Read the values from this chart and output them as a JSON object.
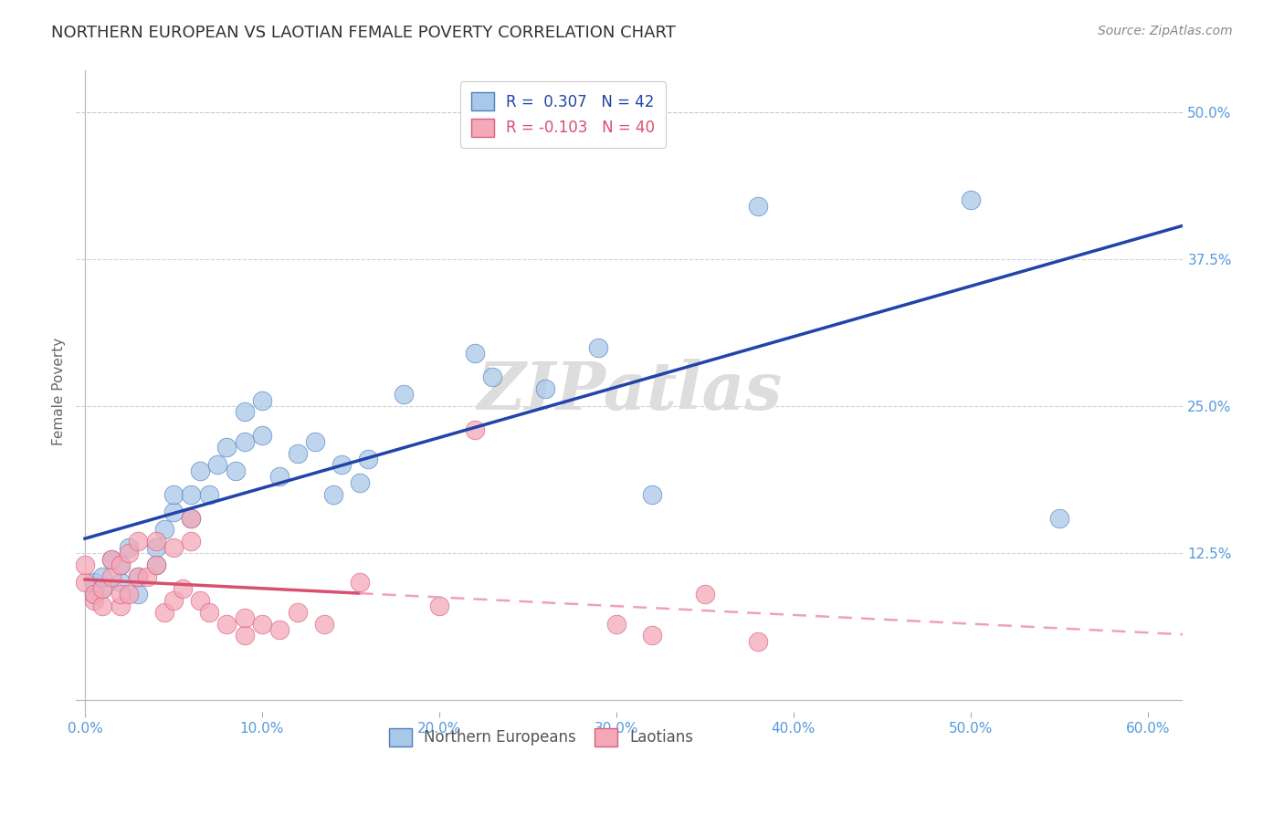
{
  "title": "NORTHERN EUROPEAN VS LAOTIAN FEMALE POVERTY CORRELATION CHART",
  "source": "Source: ZipAtlas.com",
  "ylabel_label": "Female Poverty",
  "x_tick_labels": [
    "0.0%",
    "10.0%",
    "20.0%",
    "30.0%",
    "40.0%",
    "50.0%",
    "60.0%"
  ],
  "x_tick_vals": [
    0.0,
    0.1,
    0.2,
    0.3,
    0.4,
    0.5,
    0.6
  ],
  "y_tick_labels": [
    "12.5%",
    "25.0%",
    "37.5%",
    "50.0%"
  ],
  "y_tick_vals": [
    0.125,
    0.25,
    0.375,
    0.5
  ],
  "xlim": [
    -0.005,
    0.62
  ],
  "ylim": [
    -0.01,
    0.535
  ],
  "legend_R_blue": "R =  0.307",
  "legend_N_blue": "N = 42",
  "legend_R_pink": "R = -0.103",
  "legend_N_pink": "N = 40",
  "blue_color": "#A8C8E8",
  "pink_color": "#F4A8B8",
  "blue_edge_color": "#5080C0",
  "pink_edge_color": "#D86080",
  "blue_line_color": "#2244AA",
  "pink_solid_color": "#D85070",
  "pink_dash_color": "#F0A0B8",
  "background_color": "#FFFFFF",
  "grid_color": "#CCCCCC",
  "title_color": "#333333",
  "tick_color": "#5599DD",
  "watermark_color": "#DDDDDD",
  "blue_x": [
    0.005,
    0.005,
    0.01,
    0.01,
    0.015,
    0.02,
    0.02,
    0.025,
    0.03,
    0.03,
    0.04,
    0.04,
    0.045,
    0.05,
    0.05,
    0.06,
    0.06,
    0.065,
    0.07,
    0.075,
    0.08,
    0.085,
    0.09,
    0.09,
    0.1,
    0.1,
    0.11,
    0.12,
    0.13,
    0.14,
    0.145,
    0.155,
    0.16,
    0.18,
    0.22,
    0.23,
    0.26,
    0.29,
    0.32,
    0.38,
    0.5,
    0.55
  ],
  "blue_y": [
    0.09,
    0.1,
    0.095,
    0.105,
    0.12,
    0.1,
    0.115,
    0.13,
    0.09,
    0.105,
    0.115,
    0.13,
    0.145,
    0.16,
    0.175,
    0.155,
    0.175,
    0.195,
    0.175,
    0.2,
    0.215,
    0.195,
    0.22,
    0.245,
    0.225,
    0.255,
    0.19,
    0.21,
    0.22,
    0.175,
    0.2,
    0.185,
    0.205,
    0.26,
    0.295,
    0.275,
    0.265,
    0.3,
    0.175,
    0.42,
    0.425,
    0.155
  ],
  "pink_x": [
    0.0,
    0.0,
    0.005,
    0.005,
    0.01,
    0.01,
    0.015,
    0.015,
    0.02,
    0.02,
    0.02,
    0.025,
    0.025,
    0.03,
    0.03,
    0.035,
    0.04,
    0.04,
    0.045,
    0.05,
    0.05,
    0.055,
    0.06,
    0.06,
    0.065,
    0.07,
    0.08,
    0.09,
    0.09,
    0.1,
    0.11,
    0.12,
    0.135,
    0.155,
    0.2,
    0.22,
    0.3,
    0.32,
    0.35,
    0.38
  ],
  "pink_y": [
    0.1,
    0.115,
    0.085,
    0.09,
    0.08,
    0.095,
    0.105,
    0.12,
    0.08,
    0.09,
    0.115,
    0.09,
    0.125,
    0.105,
    0.135,
    0.105,
    0.115,
    0.135,
    0.075,
    0.085,
    0.13,
    0.095,
    0.135,
    0.155,
    0.085,
    0.075,
    0.065,
    0.055,
    0.07,
    0.065,
    0.06,
    0.075,
    0.065,
    0.1,
    0.08,
    0.23,
    0.065,
    0.055,
    0.09,
    0.05
  ]
}
